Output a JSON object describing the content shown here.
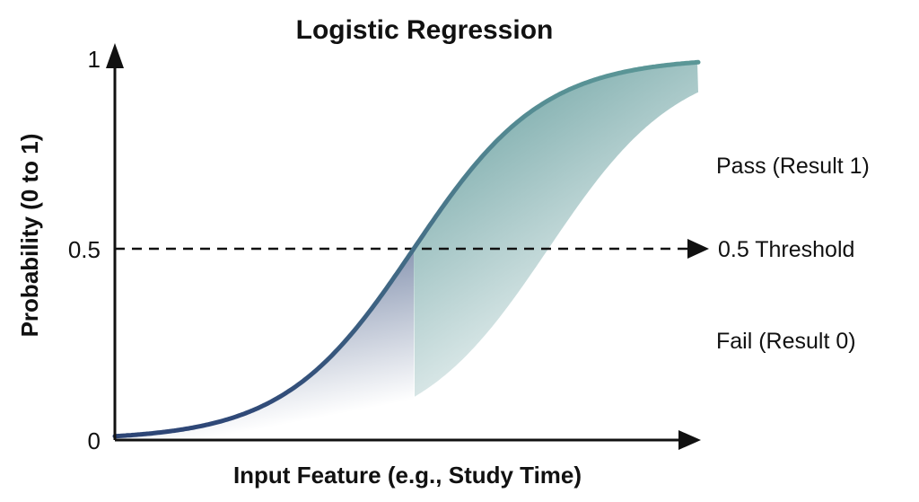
{
  "chart_data": {
    "type": "line",
    "title": "Logistic Regression",
    "xlabel": "Input Feature (e.g., Study Time)",
    "ylabel": "Probability (0 to 1)",
    "ylim": [
      0,
      1
    ],
    "yticks": [
      "0",
      "0.5",
      "1"
    ],
    "curve": "sigmoid",
    "threshold": {
      "value": 0.5,
      "label": "0.5 Threshold"
    },
    "annotations": {
      "above": "Pass (Result 1)",
      "below": "Fail (Result 0)"
    },
    "grid": false,
    "colors": {
      "curve_low": "#2d4576",
      "curve_high": "#5b9797",
      "axis": "#111111"
    }
  }
}
